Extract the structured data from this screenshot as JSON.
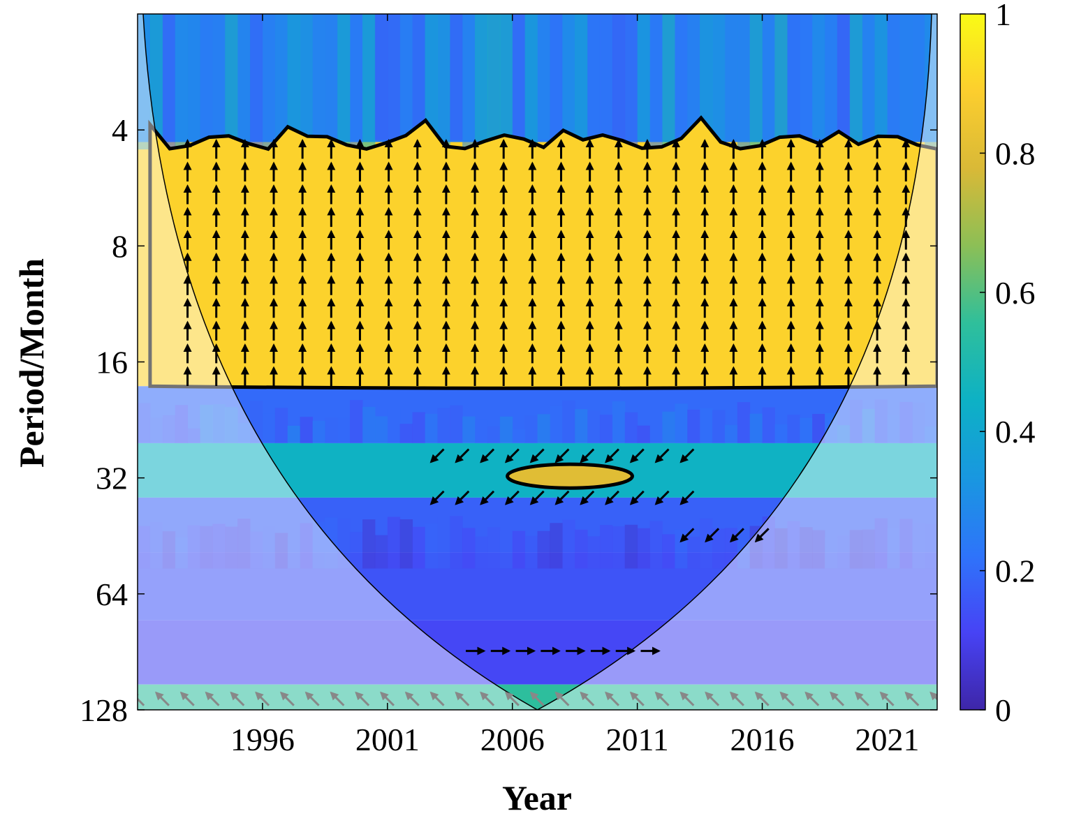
{
  "chart_data": {
    "type": "heatmap",
    "subtype": "wavelet-coherence",
    "xlabel": "Year",
    "ylabel": "Period/Month",
    "x_ticks": [
      1996,
      2001,
      2006,
      2011,
      2016,
      2021
    ],
    "xlim": [
      1991,
      2023
    ],
    "y_ticks": [
      4,
      8,
      16,
      32,
      64,
      128
    ],
    "ylim": [
      2,
      128
    ],
    "y_scale": "log2",
    "y_reversed": true,
    "colorbar": {
      "ticks": [
        "0",
        "0.2",
        "0.4",
        "0.6",
        "0.8",
        "1"
      ],
      "range": [
        0,
        1
      ],
      "colormap": "parula",
      "stops": [
        "#3e26a8",
        "#4743f5",
        "#2e74fa",
        "#1997e0",
        "#0db1c5",
        "#2fbf9b",
        "#8cbf56",
        "#d9b937",
        "#fcce2e",
        "#f9fb15"
      ]
    },
    "bands": [
      {
        "period_from": 2,
        "period_to": 4.3,
        "coherence": 0.25
      },
      {
        "period_from": 4.3,
        "period_to": 18.5,
        "coherence": 0.9
      },
      {
        "period_from": 18.5,
        "period_to": 26,
        "coherence": 0.2
      },
      {
        "period_from": 26,
        "period_to": 36,
        "coherence": 0.45
      },
      {
        "period_from": 36,
        "period_to": 50,
        "coherence": 0.18
      },
      {
        "period_from": 50,
        "period_to": 75,
        "coherence": 0.15
      },
      {
        "period_from": 75,
        "period_to": 110,
        "coherence": 0.12
      },
      {
        "period_from": 110,
        "period_to": 128,
        "coherence": 0.55
      }
    ],
    "high_coherence_regions": [
      {
        "years": [
          1991.5,
          2023
        ],
        "periods": [
          4.3,
          18.5
        ],
        "coherence": 0.9
      },
      {
        "years": [
          2005.8,
          2010.8
        ],
        "periods": [
          29.5,
          34
        ],
        "coherence": 0.8
      }
    ],
    "phase_arrows": [
      {
        "years": [
          1993,
          2022
        ],
        "periods": [
          4.5,
          17.5
        ],
        "direction": "up"
      },
      {
        "years": [
          2003,
          2013
        ],
        "periods": [
          28,
          36
        ],
        "direction": "left-down"
      },
      {
        "years": [
          2013,
          2016
        ],
        "periods": [
          45,
          45
        ],
        "direction": "left-down"
      },
      {
        "years": [
          2004.5,
          2011.5
        ],
        "periods": [
          90,
          90
        ],
        "direction": "right"
      },
      {
        "years": [
          1991,
          2023
        ],
        "periods": [
          120,
          120
        ],
        "direction": "up-left"
      }
    ],
    "cone_of_influence": {
      "apex_year": 2007,
      "apex_period": 128
    }
  }
}
